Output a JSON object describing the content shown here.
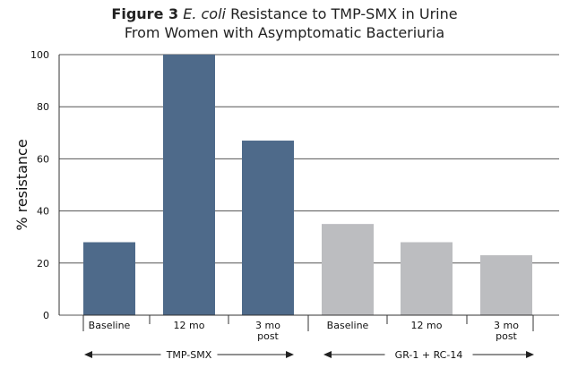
{
  "title": {
    "figure_label": "Figure 3",
    "organism": "E. coli",
    "line1_rest": " Resistance to TMP-SMX in Urine",
    "line2": "From Women with Asymptomatic Bacteriuria"
  },
  "chart_data": {
    "type": "bar",
    "ylabel": "% resistance",
    "ylim": [
      0,
      100
    ],
    "yticks": [
      0,
      20,
      40,
      60,
      80,
      100
    ],
    "grid": true,
    "categories": [
      "Baseline",
      "12 mo",
      "3 mo post",
      "Baseline",
      "12 mo",
      "3 mo post"
    ],
    "category_lines": [
      [
        "Baseline"
      ],
      [
        "12 mo"
      ],
      [
        "3 mo",
        "post"
      ],
      [
        "Baseline"
      ],
      [
        "12 mo"
      ],
      [
        "3 mo",
        "post"
      ]
    ],
    "values": [
      28,
      100,
      67,
      35,
      28,
      23
    ],
    "groups": [
      {
        "label": "TMP-SMX",
        "indices": [
          0,
          1,
          2
        ],
        "color": "#4e6a8a"
      },
      {
        "label": "GR-1 + RC-14",
        "indices": [
          3,
          4,
          5
        ],
        "color": "#bcbdc0"
      }
    ]
  }
}
